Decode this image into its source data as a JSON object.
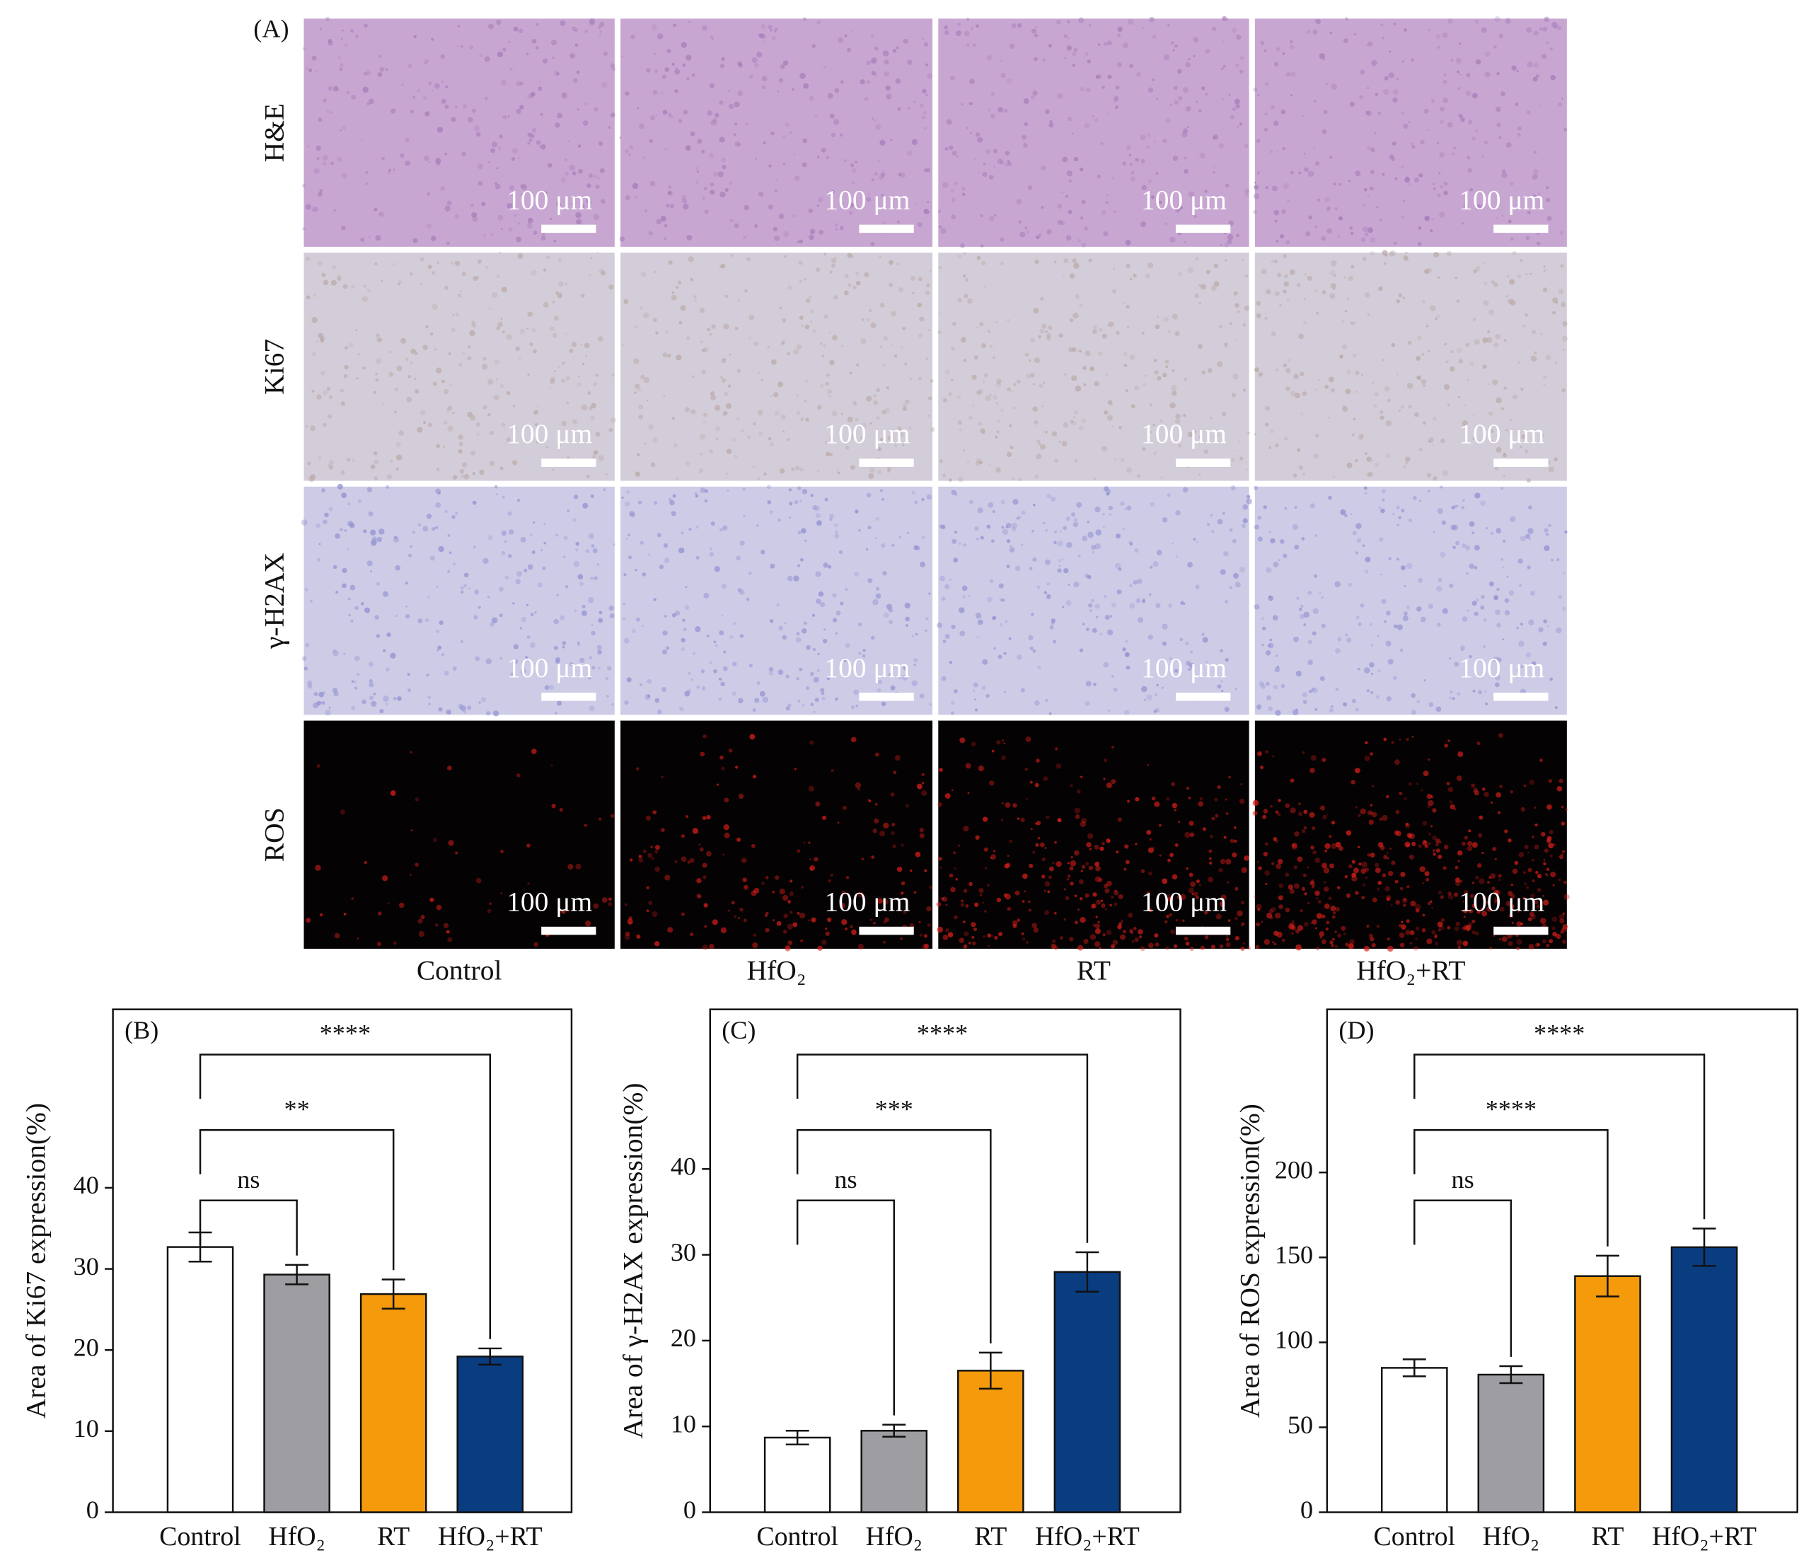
{
  "panel_a": {
    "label": "(A)",
    "rows": [
      "H&E",
      "Ki67",
      "γ-H2AX",
      "ROS"
    ],
    "columns": [
      "Control",
      "HfO₂",
      "RT",
      "HfO₂+RT"
    ],
    "scale_bar": "100 μm"
  },
  "chart_data": [
    {
      "type": "bar",
      "panel_label": "(B)",
      "ylabel": "Area of Ki67 expression(%)",
      "categories": [
        "Control",
        "HfO₂",
        "RT",
        "HfO₂+RT"
      ],
      "values": [
        32.7,
        29.3,
        26.9,
        19.2
      ],
      "errors": [
        1.8,
        1.2,
        1.8,
        1.0
      ],
      "colors": [
        "#ffffff",
        "#9e9ea2",
        "#f59a0a",
        "#0a3d80"
      ],
      "ylim": [
        0,
        62
      ],
      "yticks": [
        0,
        10,
        20,
        30,
        40
      ],
      "significance": [
        "ns",
        "**",
        "****"
      ]
    },
    {
      "type": "bar",
      "panel_label": "(C)",
      "ylabel": "Area of γ-H2AX expression(%)",
      "categories": [
        "Control",
        "HfO₂",
        "RT",
        "HfO₂+RT"
      ],
      "values": [
        8.7,
        9.5,
        16.5,
        28.0
      ],
      "errors": [
        0.8,
        0.7,
        2.1,
        2.3
      ],
      "colors": [
        "#ffffff",
        "#9e9ea2",
        "#f59a0a",
        "#0a3d80"
      ],
      "ylim": [
        0,
        58.6
      ],
      "yticks": [
        0,
        10,
        20,
        30,
        40
      ],
      "significance": [
        "ns",
        "***",
        "****"
      ]
    },
    {
      "type": "bar",
      "panel_label": "(D)",
      "ylabel": "Area of ROS expression(%)",
      "categories": [
        "Control",
        "HfO₂",
        "RT",
        "HfO₂+RT"
      ],
      "values": [
        85,
        81,
        139,
        156
      ],
      "errors": [
        5,
        5,
        12,
        11
      ],
      "colors": [
        "#ffffff",
        "#9e9ea2",
        "#f59a0a",
        "#0a3d80"
      ],
      "ylim": [
        0,
        296
      ],
      "yticks": [
        0,
        50,
        100,
        150,
        200
      ],
      "significance": [
        "ns",
        "****",
        "****"
      ]
    }
  ]
}
